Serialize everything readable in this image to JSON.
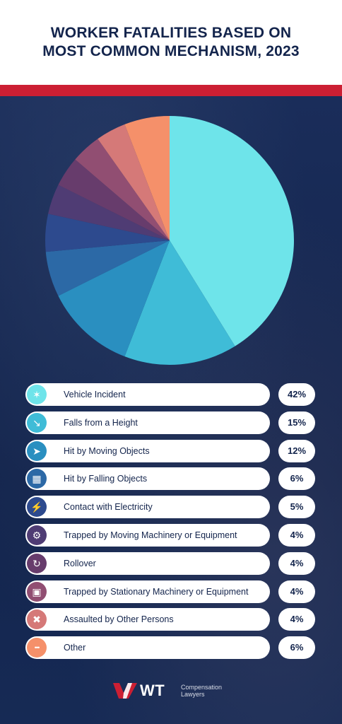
{
  "header": {
    "title_line1": "WORKER FATALITIES BASED ON",
    "title_line2": "MOST COMMON MECHANISM, 2023"
  },
  "chart_data": {
    "type": "pie",
    "title": "WORKER FATALITIES BASED ON MOST COMMON MECHANISM, 2023",
    "categories": [
      "Vehicle Incident",
      "Falls from a Height",
      "Hit by Moving Objects",
      "Hit by Falling Objects",
      "Contact with Electricity",
      "Trapped by Moving Machinery or Equipment",
      "Rollover",
      "Trapped by Stationary Machinery or Equipment",
      "Assaulted by Other Persons",
      "Other"
    ],
    "values": [
      42,
      15,
      12,
      6,
      5,
      4,
      4,
      4,
      4,
      6
    ],
    "value_labels": [
      "42%",
      "15%",
      "12%",
      "6%",
      "5%",
      "4%",
      "4%",
      "4%",
      "4%",
      "6%"
    ],
    "colors": [
      "#6ee4ea",
      "#3fbcd7",
      "#2a8fc0",
      "#2c69a6",
      "#2d4a8e",
      "#4f3c74",
      "#673c6c",
      "#914e72",
      "#d57978",
      "#f5906a"
    ],
    "legend_placement": "below"
  },
  "legend": {
    "icons": [
      "car-crash-icon",
      "falling-person-icon",
      "moving-object-icon",
      "falling-objects-icon",
      "electricity-icon",
      "machinery-icon",
      "rollover-icon",
      "tractor-icon",
      "assault-icon",
      "more-dots-icon"
    ]
  },
  "footer": {
    "logo_text": "WT",
    "logo_sub_line1": "Compensation",
    "logo_sub_line2": "Lawyers",
    "logo_color": "#cc1f33"
  }
}
